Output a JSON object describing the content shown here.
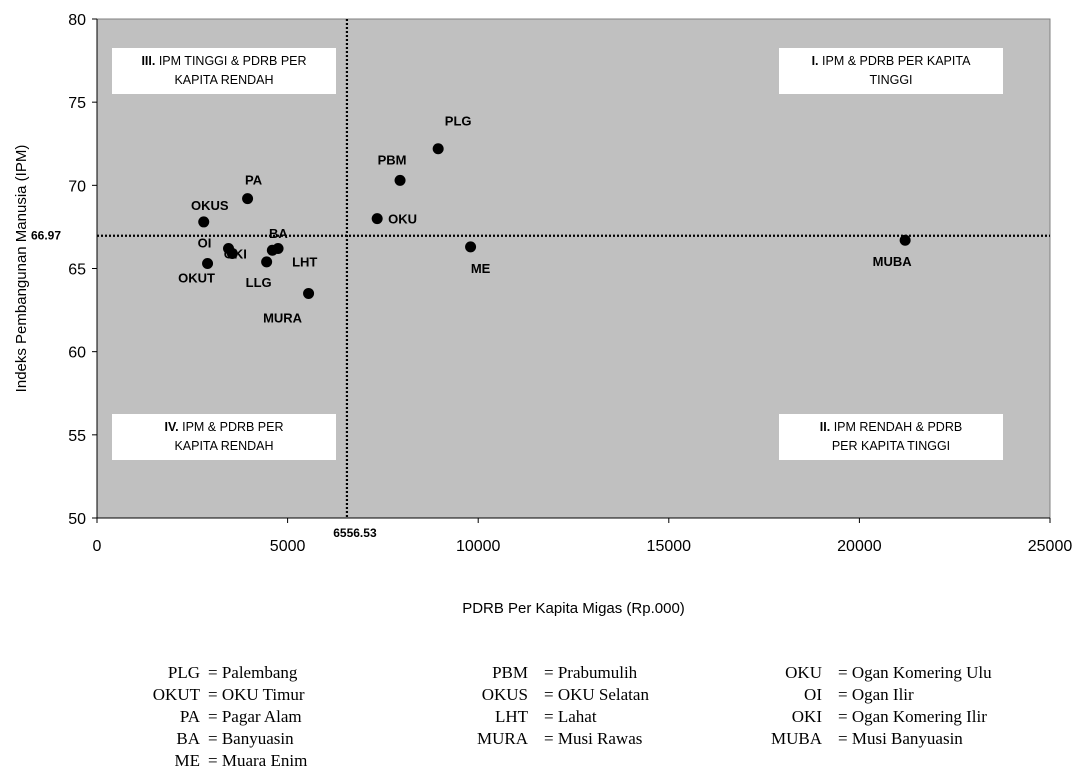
{
  "chart_data": {
    "type": "scatter",
    "xlabel": "PDRB Per Kapita Migas (Rp.000)",
    "ylabel": "Indeks Pembangunan Manusia (IPM)",
    "xlim": [
      0,
      25000
    ],
    "ylim": [
      50,
      80
    ],
    "xticks": [
      0,
      5000,
      10000,
      15000,
      20000,
      25000
    ],
    "yticks": [
      50,
      55,
      60,
      65,
      70,
      75,
      80
    ],
    "background": "#c0c0c0",
    "point_color": "#000000",
    "points": [
      {
        "label": "PLG",
        "x": 8950,
        "y": 72.2
      },
      {
        "label": "PBM",
        "x": 7950,
        "y": 70.3
      },
      {
        "label": "OKU",
        "x": 7350,
        "y": 68.0
      },
      {
        "label": "ME",
        "x": 9800,
        "y": 66.3
      },
      {
        "label": "MUBA",
        "x": 21200,
        "y": 66.7
      },
      {
        "label": "PA",
        "x": 3950,
        "y": 69.2
      },
      {
        "label": "OKUS",
        "x": 2800,
        "y": 67.8
      },
      {
        "label": "OI",
        "x": 3450,
        "y": 66.2
      },
      {
        "label": "OKI",
        "x": 3550,
        "y": 65.9
      },
      {
        "label": "OKUT",
        "x": 2900,
        "y": 65.3
      },
      {
        "label": "BA",
        "x": 4600,
        "y": 66.1
      },
      {
        "label": "LHT",
        "x": 4750,
        "y": 66.2
      },
      {
        "label": "LLG",
        "x": 4450,
        "y": 65.4
      },
      {
        "label": "MURA",
        "x": 5550,
        "y": 63.5
      }
    ],
    "reference_lines": {
      "x": {
        "value": 6556.53,
        "label": "6556.53"
      },
      "y": {
        "value": 66.97,
        "label": "66.97"
      }
    },
    "quadrants": [
      {
        "number": "III.",
        "lines": [
          "IPM TINGGI & PDRB PER",
          "KAPITA RENDAH"
        ],
        "position": "top-left"
      },
      {
        "number": "I.",
        "lines": [
          "IPM & PDRB PER KAPITA",
          "TINGGI"
        ],
        "position": "top-right"
      },
      {
        "number": "IV.",
        "lines": [
          "IPM & PDRB PER",
          "KAPITA RENDAH"
        ],
        "position": "bottom-left"
      },
      {
        "number": "II.",
        "lines": [
          "IPM RENDAH & PDRB",
          "PER KAPITA TINGGI"
        ],
        "position": "bottom-right"
      }
    ]
  },
  "legend": [
    [
      {
        "abbr": "PLG",
        "name": "= Palembang"
      },
      {
        "abbr": "PBM",
        "name": "= Prabumulih"
      },
      {
        "abbr": "OKU",
        "name": "= Ogan Komering Ulu"
      }
    ],
    [
      {
        "abbr": "OKUT",
        "name": "= OKU Timur"
      },
      {
        "abbr": "OKUS",
        "name": "= OKU Selatan"
      },
      {
        "abbr": "OI",
        "name": "= Ogan Ilir"
      }
    ],
    [
      {
        "abbr": "PA",
        "name": "= Pagar Alam"
      },
      {
        "abbr": "LHT",
        "name": "= Lahat"
      },
      {
        "abbr": "OKI",
        "name": "= Ogan Komering Ilir"
      }
    ],
    [
      {
        "abbr": "BA",
        "name": "= Banyuasin"
      },
      {
        "abbr": "MURA",
        "name": "= Musi Rawas"
      },
      {
        "abbr": "MUBA",
        "name": "= Musi Banyuasin"
      }
    ],
    [
      {
        "abbr": "ME",
        "name": "= Muara Enim"
      }
    ]
  ]
}
